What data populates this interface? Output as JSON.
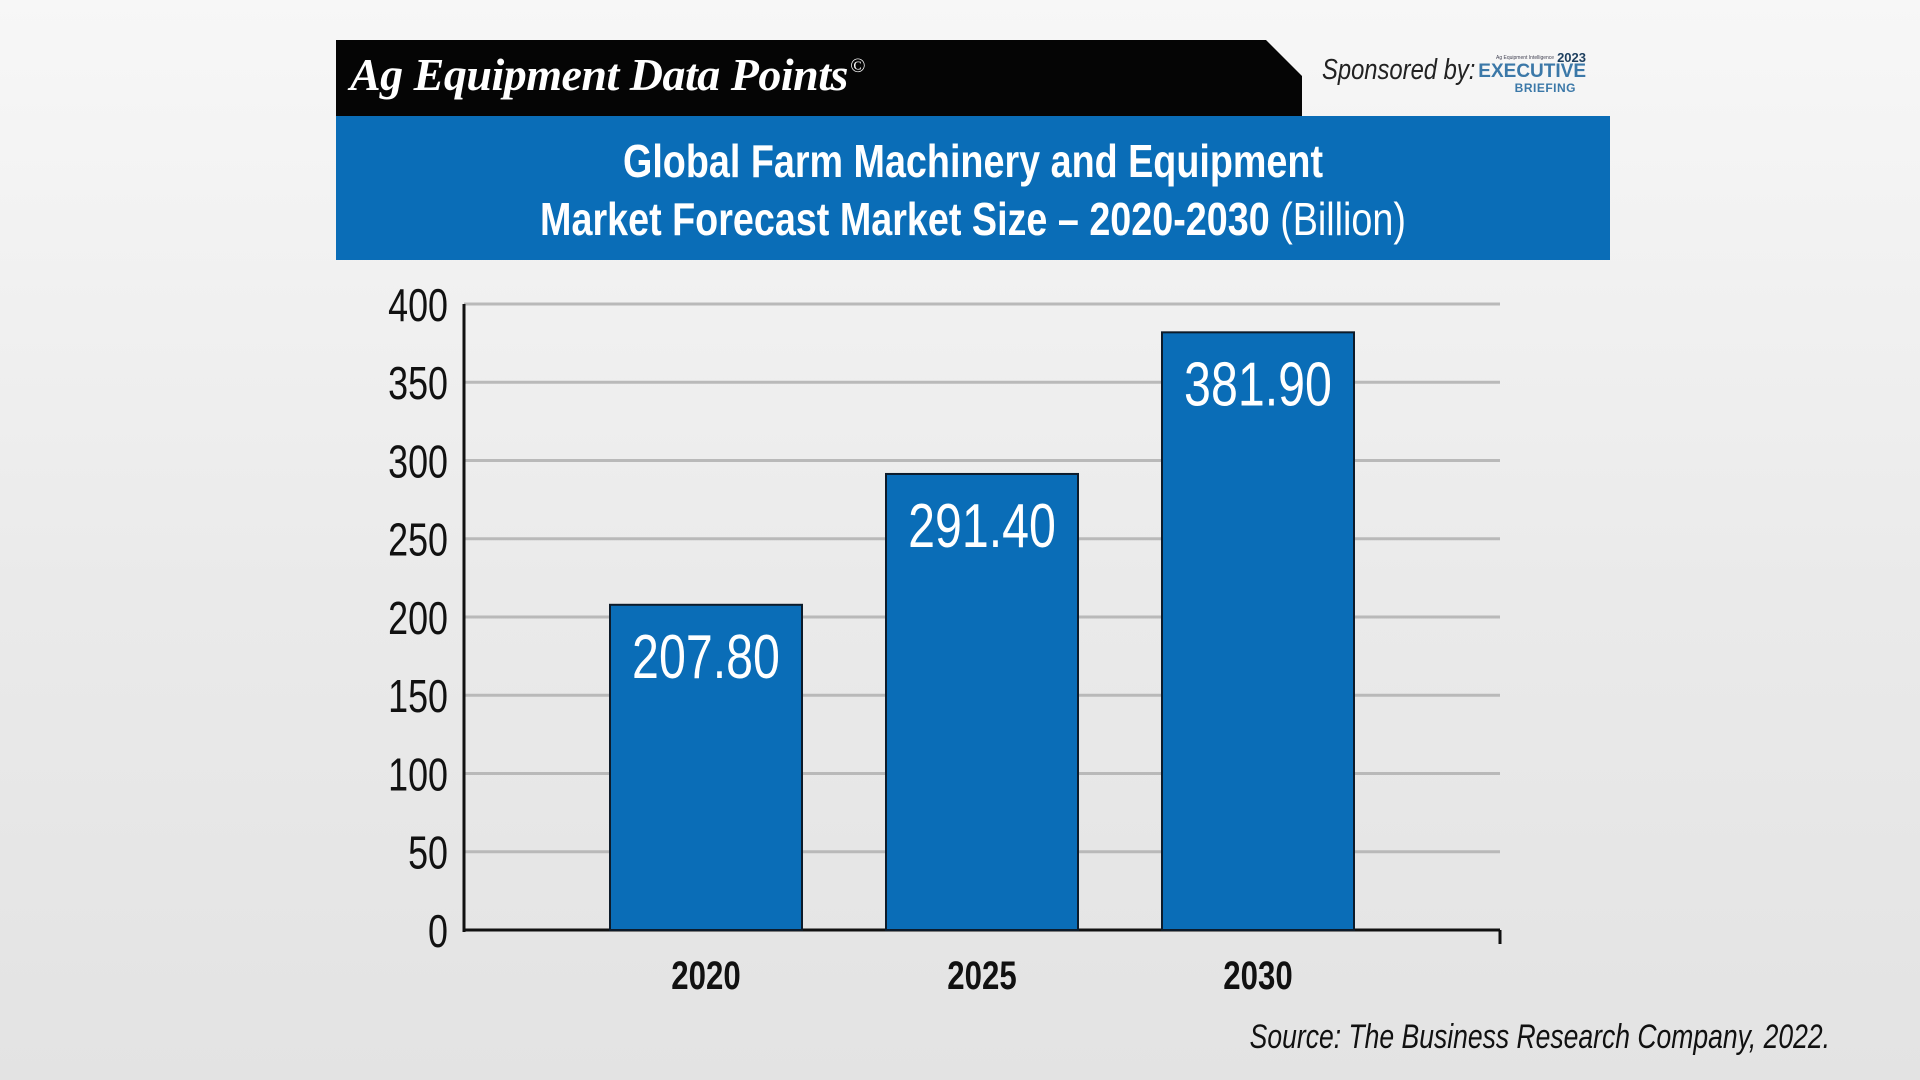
{
  "header": {
    "banner_title": "Ag Equipment Data Points",
    "copyright_mark": "©",
    "sponsored_label": "Sponsored by:",
    "sponsor_logo": {
      "tagline": "Ag Equipment Intelligence",
      "year": "2023",
      "line1": "EXECUTIVE",
      "line2": "BRIEFING"
    }
  },
  "title": {
    "line1": "Global Farm Machinery and Equipment",
    "line2": "Market Forecast Market Size – 2020-2030",
    "unit": "(Billion)"
  },
  "colors": {
    "bar_fill": "#0a6db7",
    "bar_stroke": "#0d1b2a",
    "title_box": "#0a6db7",
    "banner": "#050505",
    "gridline": "#b9b9b9"
  },
  "chart_data": {
    "type": "bar",
    "categories": [
      "2020",
      "2025",
      "2030"
    ],
    "values": [
      207.8,
      291.4,
      381.9
    ],
    "data_labels": [
      "207.80",
      "291.40",
      "381.90"
    ],
    "ylim": [
      0,
      400
    ],
    "yticks": [
      "0",
      "50",
      "100",
      "150",
      "200",
      "250",
      "300",
      "350",
      "400"
    ],
    "grid": true,
    "legend": "none",
    "xlabel": "",
    "ylabel": ""
  },
  "source": "Source: The Business Research Company, 2022."
}
